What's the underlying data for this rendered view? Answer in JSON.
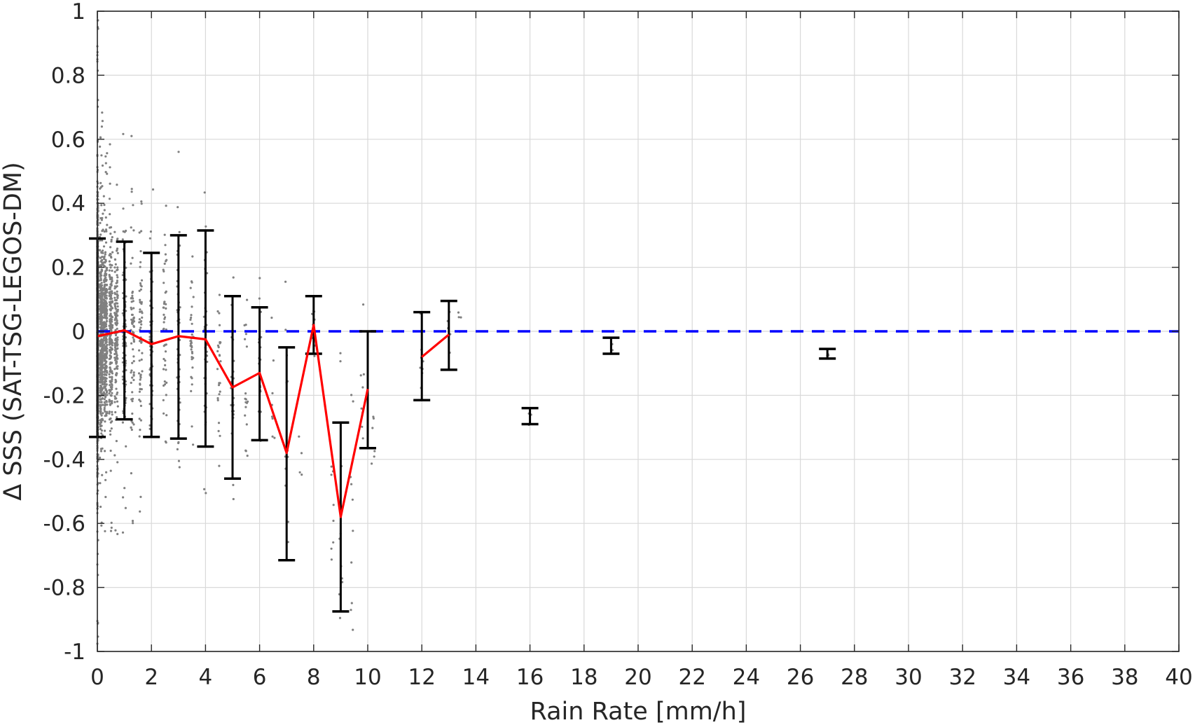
{
  "chart_data": {
    "type": "scatter",
    "title": "",
    "xlabel": "Rain Rate [mm/h]",
    "ylabel": "Δ SSS (SAT-TSG-LEGOS-DM)",
    "xlim": [
      0,
      40
    ],
    "ylim": [
      -1,
      1
    ],
    "grid": true,
    "x_ticks": [
      "0",
      "2",
      "4",
      "6",
      "8",
      "10",
      "12",
      "14",
      "16",
      "18",
      "20",
      "22",
      "24",
      "26",
      "28",
      "30",
      "32",
      "34",
      "36",
      "38",
      "40"
    ],
    "y_ticks": [
      "-1",
      "-0.8",
      "-0.6",
      "-0.4",
      "-0.2",
      "0",
      "0.2",
      "0.4",
      "0.6",
      "0.8",
      "1"
    ],
    "colors": {
      "scatter": "#808080",
      "mean_line": "#ff0000",
      "error_bars": "#000000",
      "zero_line": "#0000ff"
    },
    "mean_line_segments": [
      [
        [
          0,
          -0.015
        ],
        [
          1,
          0.003
        ],
        [
          2,
          -0.04
        ],
        [
          3,
          -0.015
        ],
        [
          4,
          -0.025
        ],
        [
          5,
          -0.175
        ],
        [
          6,
          -0.13
        ],
        [
          7,
          -0.38
        ],
        [
          8,
          0.02
        ],
        [
          9,
          -0.58
        ],
        [
          10,
          -0.18
        ]
      ],
      [
        [
          12,
          -0.08
        ],
        [
          13,
          -0.01
        ]
      ]
    ],
    "error_bars": [
      {
        "x": 0,
        "low": -0.33,
        "high": 0.29
      },
      {
        "x": 1,
        "low": -0.275,
        "high": 0.28
      },
      {
        "x": 2,
        "low": -0.33,
        "high": 0.245
      },
      {
        "x": 3,
        "low": -0.335,
        "high": 0.3
      },
      {
        "x": 4,
        "low": -0.36,
        "high": 0.315
      },
      {
        "x": 5,
        "low": -0.46,
        "high": 0.11
      },
      {
        "x": 6,
        "low": -0.34,
        "high": 0.075
      },
      {
        "x": 7,
        "low": -0.715,
        "high": -0.05
      },
      {
        "x": 8,
        "low": -0.07,
        "high": 0.11
      },
      {
        "x": 9,
        "low": -0.875,
        "high": -0.285
      },
      {
        "x": 10,
        "low": -0.365,
        "high": 0.0
      },
      {
        "x": 12,
        "low": -0.215,
        "high": 0.06
      },
      {
        "x": 13,
        "low": -0.12,
        "high": 0.095
      },
      {
        "x": 16,
        "low": -0.29,
        "high": -0.24
      },
      {
        "x": 19,
        "low": -0.07,
        "high": -0.02
      },
      {
        "x": 27,
        "low": -0.085,
        "high": -0.055
      }
    ],
    "zero_line": 0,
    "scatter_clusters": [
      {
        "x": 0.0,
        "count": 900,
        "mean": -0.01,
        "spread": 0.3,
        "clip": 1.0
      },
      {
        "x": 0.15,
        "count": 420,
        "mean": -0.01,
        "spread": 0.22,
        "clip": 0.7
      },
      {
        "x": 0.3,
        "count": 300,
        "mean": 0.0,
        "spread": 0.2,
        "clip": 0.67
      },
      {
        "x": 0.5,
        "count": 220,
        "mean": 0.0,
        "spread": 0.2,
        "clip": 0.66
      },
      {
        "x": 0.7,
        "count": 150,
        "mean": 0.0,
        "spread": 0.2,
        "clip": 0.66
      },
      {
        "x": 1.0,
        "count": 110,
        "mean": 0.0,
        "spread": 0.2,
        "clip": 0.65
      },
      {
        "x": 1.3,
        "count": 70,
        "mean": -0.02,
        "spread": 0.22,
        "clip": 0.62
      },
      {
        "x": 1.6,
        "count": 60,
        "mean": -0.03,
        "spread": 0.22,
        "clip": 0.6
      },
      {
        "x": 2.0,
        "count": 55,
        "mean": -0.04,
        "spread": 0.2,
        "clip": 0.55
      },
      {
        "x": 2.5,
        "count": 45,
        "mean": -0.02,
        "spread": 0.22,
        "clip": 0.58
      },
      {
        "x": 3.0,
        "count": 45,
        "mean": -0.02,
        "spread": 0.22,
        "clip": 0.58
      },
      {
        "x": 3.5,
        "count": 35,
        "mean": -0.03,
        "spread": 0.24,
        "clip": 0.55
      },
      {
        "x": 4.0,
        "count": 35,
        "mean": -0.03,
        "spread": 0.24,
        "clip": 0.55
      },
      {
        "x": 4.5,
        "count": 25,
        "mean": -0.1,
        "spread": 0.25,
        "clip": 0.4
      },
      {
        "x": 5.0,
        "count": 22,
        "mean": -0.15,
        "spread": 0.22,
        "clip": 0.4
      },
      {
        "x": 5.5,
        "count": 18,
        "mean": -0.14,
        "spread": 0.2,
        "clip": 0.4
      },
      {
        "x": 6.0,
        "count": 18,
        "mean": -0.13,
        "spread": 0.2,
        "clip": 0.3
      },
      {
        "x": 6.5,
        "count": 8,
        "mean": -0.12,
        "spread": 0.2,
        "clip": 0.3
      },
      {
        "x": 7.0,
        "count": 12,
        "mean": -0.38,
        "spread": 0.3,
        "clip": 0.2
      },
      {
        "x": 7.5,
        "count": 4,
        "mean": -0.4,
        "spread": 0.1,
        "clip": 0.2
      },
      {
        "x": 8.0,
        "count": 10,
        "mean": 0.02,
        "spread": 0.08,
        "clip": 0.2
      },
      {
        "x": 8.7,
        "count": 8,
        "mean": -0.6,
        "spread": 0.15,
        "clip": 0.2
      },
      {
        "x": 9.0,
        "count": 12,
        "mean": -0.55,
        "spread": 0.3,
        "clip": 0.15
      },
      {
        "x": 9.4,
        "count": 10,
        "mean": -0.55,
        "spread": 0.3,
        "clip": 0.15
      },
      {
        "x": 9.8,
        "count": 8,
        "mean": -0.15,
        "spread": 0.2,
        "clip": 0.12
      },
      {
        "x": 10.2,
        "count": 6,
        "mean": -0.3,
        "spread": 0.1,
        "clip": 0.1
      },
      {
        "x": 12.0,
        "count": 8,
        "mean": -0.05,
        "spread": 0.15,
        "clip": 0.16
      },
      {
        "x": 13.0,
        "count": 5,
        "mean": -0.01,
        "spread": 0.08,
        "clip": 0.12
      },
      {
        "x": 13.4,
        "count": 4,
        "mean": 0.05,
        "spread": 0.05,
        "clip": 0.12
      },
      {
        "x": 16.0,
        "count": 3,
        "mean": -0.27,
        "spread": 0.02,
        "clip": 0.0
      },
      {
        "x": 19.0,
        "count": 3,
        "mean": -0.045,
        "spread": 0.02,
        "clip": 0.0
      },
      {
        "x": 27.0,
        "count": 3,
        "mean": -0.07,
        "spread": 0.01,
        "clip": 0.0
      }
    ]
  }
}
